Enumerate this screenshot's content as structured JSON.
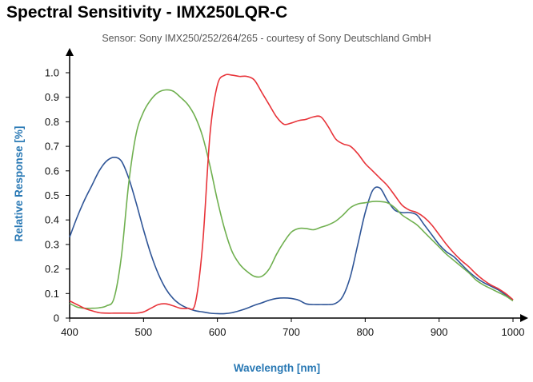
{
  "chart_data": {
    "type": "line",
    "title": "Spectral Sensitivity - IMX250LQR-C",
    "subtitle": "Sensor: Sony IMX250/252/264/265 - courtesy of Sony Deutschland GmbH",
    "xlabel": "Wavelength [nm]",
    "ylabel": "Relative Response [%]",
    "xlim": [
      400,
      1000
    ],
    "ylim": [
      0,
      1.0
    ],
    "xticks": [
      400,
      500,
      600,
      700,
      800,
      900,
      1000
    ],
    "yticks": [
      "0",
      "0.1",
      "0.2",
      "0.3",
      "0.4",
      "0.5",
      "0.6",
      "0.7",
      "0.8",
      "0.9",
      "1.0"
    ],
    "grid": false,
    "legend": "none",
    "series": [
      {
        "color": "#2f5597",
        "x": [
          400,
          410,
          420,
          430,
          440,
          450,
          460,
          470,
          480,
          490,
          500,
          510,
          520,
          530,
          540,
          550,
          560,
          570,
          580,
          590,
          600,
          610,
          620,
          630,
          640,
          650,
          660,
          670,
          680,
          690,
          700,
          710,
          720,
          730,
          740,
          750,
          760,
          770,
          780,
          790,
          800,
          810,
          820,
          830,
          840,
          850,
          860,
          870,
          880,
          890,
          900,
          910,
          920,
          930,
          940,
          950,
          960,
          970,
          980,
          990,
          1000
        ],
        "values": [
          0.33,
          0.41,
          0.48,
          0.54,
          0.6,
          0.64,
          0.655,
          0.64,
          0.57,
          0.47,
          0.36,
          0.26,
          0.18,
          0.12,
          0.08,
          0.055,
          0.04,
          0.03,
          0.025,
          0.02,
          0.018,
          0.018,
          0.022,
          0.03,
          0.04,
          0.052,
          0.062,
          0.073,
          0.08,
          0.082,
          0.08,
          0.073,
          0.058,
          0.055,
          0.055,
          0.055,
          0.06,
          0.09,
          0.17,
          0.3,
          0.43,
          0.52,
          0.53,
          0.48,
          0.44,
          0.43,
          0.43,
          0.42,
          0.38,
          0.34,
          0.3,
          0.27,
          0.25,
          0.22,
          0.19,
          0.165,
          0.145,
          0.13,
          0.115,
          0.095,
          0.075
        ]
      },
      {
        "color": "#70b050",
        "x": [
          400,
          410,
          420,
          430,
          440,
          450,
          460,
          470,
          480,
          490,
          500,
          510,
          520,
          530,
          540,
          550,
          560,
          570,
          580,
          590,
          600,
          610,
          620,
          630,
          640,
          650,
          660,
          670,
          680,
          690,
          700,
          710,
          720,
          730,
          740,
          750,
          760,
          770,
          780,
          790,
          800,
          810,
          820,
          830,
          840,
          850,
          860,
          870,
          880,
          890,
          900,
          910,
          920,
          930,
          940,
          950,
          960,
          970,
          980,
          990,
          1000
        ],
        "values": [
          0.06,
          0.045,
          0.04,
          0.04,
          0.042,
          0.05,
          0.08,
          0.25,
          0.55,
          0.75,
          0.84,
          0.89,
          0.92,
          0.93,
          0.925,
          0.9,
          0.87,
          0.82,
          0.74,
          0.62,
          0.48,
          0.36,
          0.27,
          0.22,
          0.19,
          0.17,
          0.17,
          0.2,
          0.26,
          0.31,
          0.35,
          0.365,
          0.365,
          0.36,
          0.37,
          0.38,
          0.395,
          0.42,
          0.45,
          0.465,
          0.47,
          0.475,
          0.475,
          0.47,
          0.45,
          0.42,
          0.4,
          0.38,
          0.35,
          0.32,
          0.29,
          0.26,
          0.235,
          0.21,
          0.185,
          0.155,
          0.135,
          0.12,
          0.105,
          0.09,
          0.07
        ]
      },
      {
        "color": "#e8343a",
        "x": [
          400,
          410,
          420,
          430,
          440,
          450,
          460,
          470,
          480,
          490,
          500,
          510,
          520,
          530,
          540,
          550,
          560,
          570,
          580,
          590,
          600,
          610,
          620,
          630,
          640,
          650,
          660,
          670,
          680,
          690,
          700,
          710,
          720,
          730,
          740,
          750,
          760,
          770,
          780,
          790,
          800,
          810,
          820,
          830,
          840,
          850,
          860,
          870,
          880,
          890,
          900,
          910,
          920,
          930,
          940,
          950,
          960,
          970,
          980,
          990,
          1000
        ],
        "values": [
          0.07,
          0.055,
          0.04,
          0.03,
          0.022,
          0.02,
          0.02,
          0.02,
          0.02,
          0.02,
          0.025,
          0.04,
          0.055,
          0.058,
          0.05,
          0.04,
          0.04,
          0.06,
          0.3,
          0.75,
          0.95,
          0.99,
          0.99,
          0.985,
          0.985,
          0.97,
          0.92,
          0.87,
          0.82,
          0.79,
          0.795,
          0.805,
          0.81,
          0.82,
          0.82,
          0.78,
          0.73,
          0.71,
          0.7,
          0.67,
          0.63,
          0.6,
          0.57,
          0.54,
          0.5,
          0.46,
          0.44,
          0.43,
          0.41,
          0.38,
          0.34,
          0.3,
          0.265,
          0.235,
          0.21,
          0.18,
          0.155,
          0.135,
          0.12,
          0.1,
          0.075
        ]
      }
    ]
  }
}
